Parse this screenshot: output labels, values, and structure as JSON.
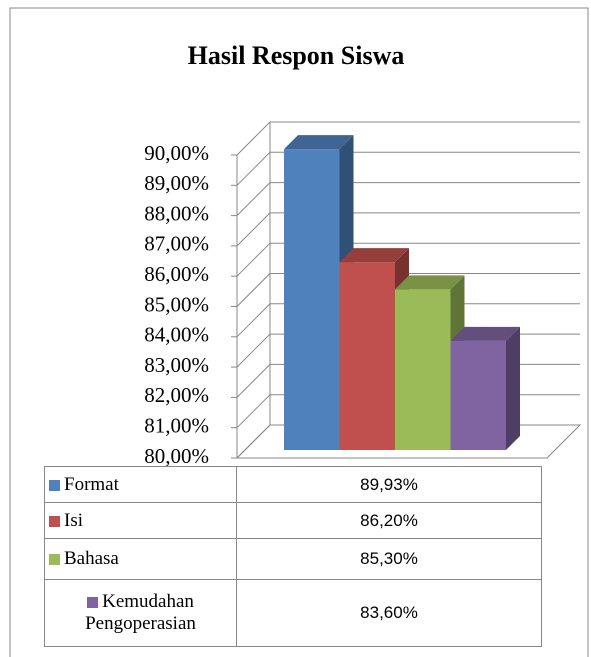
{
  "chart_data": {
    "type": "bar3d",
    "title": "Hasil Respon Siswa",
    "ylim": [
      80,
      90
    ],
    "yticks": [
      {
        "value": 80,
        "label": "80,00%"
      },
      {
        "value": 81,
        "label": "81,00%"
      },
      {
        "value": 82,
        "label": "82,00%"
      },
      {
        "value": 83,
        "label": "83,00%"
      },
      {
        "value": 84,
        "label": "84,00%"
      },
      {
        "value": 85,
        "label": "85,00%"
      },
      {
        "value": 86,
        "label": "86,00%"
      },
      {
        "value": 87,
        "label": "87,00%"
      },
      {
        "value": 88,
        "label": "88,00%"
      },
      {
        "value": 89,
        "label": "89,00%"
      },
      {
        "value": 90,
        "label": "90,00%"
      }
    ],
    "grid": true,
    "series": [
      {
        "name": "Format",
        "color": "#4f81bd",
        "values": [
          89.93
        ],
        "value_labels": [
          "89,93%"
        ]
      },
      {
        "name": "Isi",
        "color": "#c0504d",
        "values": [
          86.2
        ],
        "value_labels": [
          "86,20%"
        ]
      },
      {
        "name": "Bahasa",
        "color": "#9bbb59",
        "values": [
          85.3
        ],
        "value_labels": [
          "85,30%"
        ]
      },
      {
        "name": "Kemudahan Pengoperasian",
        "color": "#8064a2",
        "values": [
          83.6
        ],
        "value_labels": [
          "83,60%"
        ]
      }
    ]
  }
}
